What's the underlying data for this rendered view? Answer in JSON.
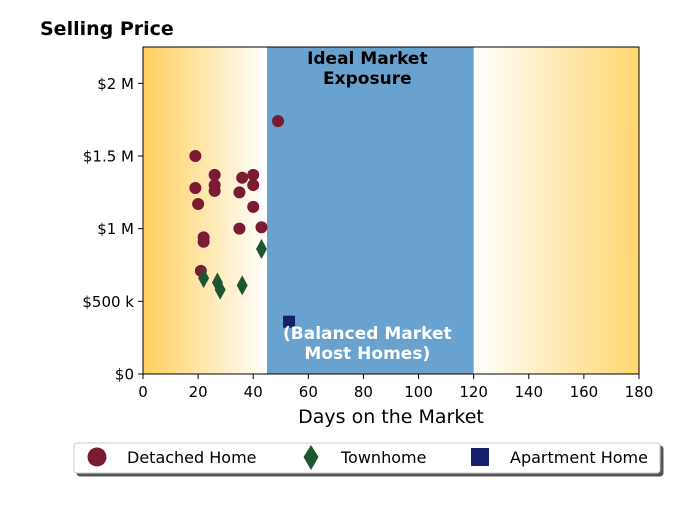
{
  "chart_data": {
    "type": "scatter",
    "title": "Selling Price",
    "xlabel": "Days on the Market",
    "ylabel": "",
    "xlim": [
      0,
      180
    ],
    "ylim": [
      0,
      2250000
    ],
    "x_ticks": [
      0,
      20,
      40,
      60,
      80,
      100,
      120,
      140,
      160,
      180
    ],
    "x_tick_labels": [
      "0",
      "20",
      "40",
      "60",
      "80",
      "100",
      "120",
      "140",
      "160",
      "180"
    ],
    "y_ticks": [
      0,
      500000,
      1000000,
      1500000,
      2000000
    ],
    "y_tick_labels": [
      "$0",
      "$500 k",
      "$1 M",
      "$1.5 M",
      "$2 M"
    ],
    "grid": false,
    "legend_position": "bottom",
    "band": {
      "x0": 45,
      "x1": 120,
      "color": "#6aa2cf"
    },
    "annotations": {
      "band_top": [
        "Ideal Market",
        "Exposure"
      ],
      "band_bottom": [
        "(Balanced Market",
        "Most Homes)"
      ]
    },
    "series": [
      {
        "name": "Detached Home",
        "marker": "circle",
        "color": "#7b1a33",
        "points": [
          [
            19,
            1500000
          ],
          [
            19,
            1280000
          ],
          [
            20,
            1170000
          ],
          [
            21,
            710000
          ],
          [
            22,
            940000
          ],
          [
            22,
            910000
          ],
          [
            26,
            1370000
          ],
          [
            26,
            1300000
          ],
          [
            26,
            1260000
          ],
          [
            35,
            1250000
          ],
          [
            36,
            1350000
          ],
          [
            35,
            1000000
          ],
          [
            40,
            1370000
          ],
          [
            40,
            1300000
          ],
          [
            40,
            1150000
          ],
          [
            43,
            1010000
          ],
          [
            49,
            1740000
          ]
        ]
      },
      {
        "name": "Townhome",
        "marker": "diamond",
        "color": "#1e5631",
        "points": [
          [
            22,
            660000
          ],
          [
            27,
            630000
          ],
          [
            28,
            580000
          ],
          [
            36,
            610000
          ],
          [
            43,
            860000
          ]
        ]
      },
      {
        "name": "Apartment Home",
        "marker": "square",
        "color": "#14206b",
        "points": [
          [
            53,
            360000
          ]
        ]
      }
    ]
  }
}
